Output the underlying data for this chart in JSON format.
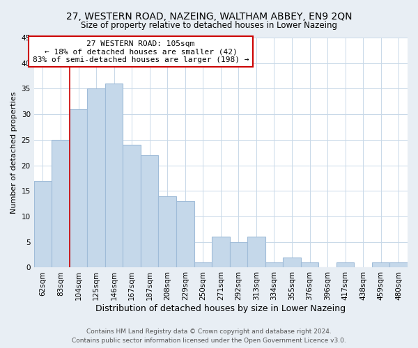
{
  "title": "27, WESTERN ROAD, NAZEING, WALTHAM ABBEY, EN9 2QN",
  "subtitle": "Size of property relative to detached houses in Lower Nazeing",
  "xlabel": "Distribution of detached houses by size in Lower Nazeing",
  "ylabel": "Number of detached properties",
  "bin_labels": [
    "62sqm",
    "83sqm",
    "104sqm",
    "125sqm",
    "146sqm",
    "167sqm",
    "187sqm",
    "208sqm",
    "229sqm",
    "250sqm",
    "271sqm",
    "292sqm",
    "313sqm",
    "334sqm",
    "355sqm",
    "376sqm",
    "396sqm",
    "417sqm",
    "438sqm",
    "459sqm",
    "480sqm"
  ],
  "bar_values": [
    17,
    25,
    31,
    35,
    36,
    24,
    22,
    14,
    13,
    1,
    6,
    5,
    6,
    1,
    2,
    1,
    0,
    1,
    0,
    1,
    1
  ],
  "bar_color": "#c5d8ea",
  "bar_edge_color": "#a0bcd8",
  "vline_x_index": 2,
  "vline_color": "#cc0000",
  "annotation_line1": "27 WESTERN ROAD: 105sqm",
  "annotation_line2": "← 18% of detached houses are smaller (42)",
  "annotation_line3": "83% of semi-detached houses are larger (198) →",
  "annotation_box_color": "#ffffff",
  "annotation_box_edge": "#cc0000",
  "ylim": [
    0,
    45
  ],
  "yticks": [
    0,
    5,
    10,
    15,
    20,
    25,
    30,
    35,
    40,
    45
  ],
  "footer_line1": "Contains HM Land Registry data © Crown copyright and database right 2024.",
  "footer_line2": "Contains public sector information licensed under the Open Government Licence v3.0.",
  "background_color": "#e8eef4",
  "plot_bg_color": "#ffffff",
  "grid_color": "#c8d8e8",
  "title_fontsize": 10,
  "subtitle_fontsize": 8.5,
  "ylabel_fontsize": 8,
  "xlabel_fontsize": 9,
  "tick_fontsize": 7.5,
  "annotation_fontsize": 8,
  "footer_fontsize": 6.5
}
